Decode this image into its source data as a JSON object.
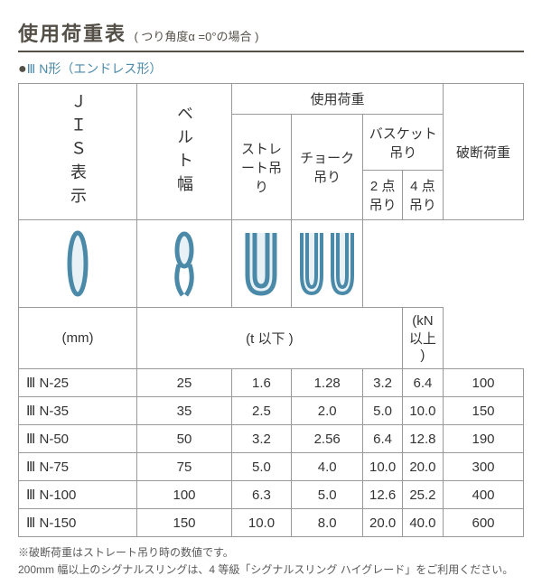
{
  "title": "使用荷重表",
  "subtitle": "( つり角度α =0°の場合 )",
  "bullet": "●",
  "bullet_text": "Ⅲ N形（エンドレス形）",
  "headers": {
    "jis": "ＪＩＳ表示",
    "belt": "ベルト幅",
    "load": "使用荷重",
    "straight": "ストレート吊り",
    "choke": "チョーク吊り",
    "basket": "バスケット吊り",
    "p2": "2 点吊り",
    "p4": "4 点吊り",
    "break": "破断荷重"
  },
  "units": {
    "mm": "(mm)",
    "t": "(t 以下 )",
    "kn": "(kN 以上 )"
  },
  "rows": [
    {
      "jis": "Ⅲ N-25",
      "belt": "25",
      "v": [
        "1.6",
        "1.28",
        "3.2",
        "6.4"
      ],
      "br": "100"
    },
    {
      "jis": "Ⅲ N-35",
      "belt": "35",
      "v": [
        "2.5",
        "2.0",
        "5.0",
        "10.0"
      ],
      "br": "150"
    },
    {
      "jis": "Ⅲ N-50",
      "belt": "50",
      "v": [
        "3.2",
        "2.56",
        "6.4",
        "12.8"
      ],
      "br": "190"
    },
    {
      "jis": "Ⅲ N-75",
      "belt": "75",
      "v": [
        "5.0",
        "4.0",
        "10.0",
        "20.0"
      ],
      "br": "300"
    },
    {
      "jis": "Ⅲ N-100",
      "belt": "100",
      "v": [
        "6.3",
        "5.0",
        "12.6",
        "25.2"
      ],
      "br": "400"
    },
    {
      "jis": "Ⅲ N-150",
      "belt": "150",
      "v": [
        "10.0",
        "8.0",
        "20.0",
        "40.0"
      ],
      "br": "600"
    }
  ],
  "footnote1": "※破断荷重はストレート吊り時の数値です。",
  "footnote2": "200mm 幅以上のシグナルスリングは、4 等級「シグナルスリング ハイグレード」をご利用ください。",
  "colors": {
    "icon": "#4a8aa8",
    "iconFill": "#e8f2f6"
  }
}
